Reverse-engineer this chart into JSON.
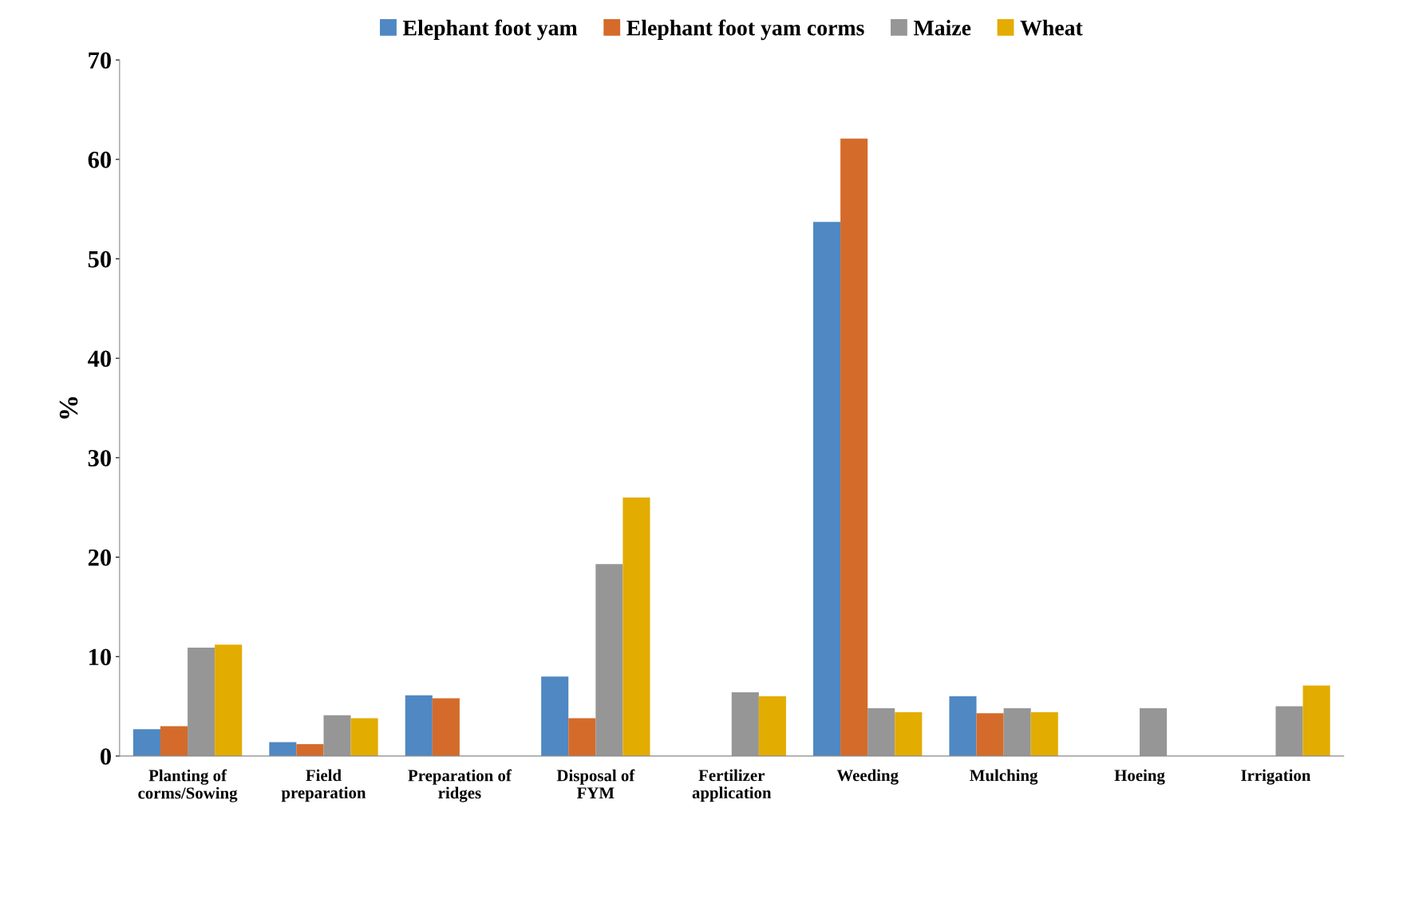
{
  "chart_data": {
    "type": "bar",
    "ylabel": "%",
    "categories": [
      "Planting of\ncorms/Sowing",
      "Field\npreparation",
      "Preparation of\nridges",
      "Disposal of\nFYM",
      "Fertilizer\napplication",
      "Weeding",
      "Mulching",
      "Hoeing",
      "Irrigation"
    ],
    "series": [
      {
        "name": "Elephant foot yam",
        "color": "#4f88c2",
        "values": [
          2.7,
          1.4,
          6.1,
          8.0,
          null,
          53.7,
          6.0,
          null,
          null
        ]
      },
      {
        "name": "Elephant foot yam corms",
        "color": "#d46b2a",
        "values": [
          3.0,
          1.2,
          5.8,
          3.8,
          null,
          62.1,
          4.3,
          null,
          null
        ]
      },
      {
        "name": "Maize",
        "color": "#969696",
        "values": [
          10.9,
          4.1,
          null,
          19.3,
          6.4,
          4.8,
          4.8,
          4.8,
          5.0
        ]
      },
      {
        "name": "Wheat",
        "color": "#e3ac00",
        "values": [
          11.2,
          3.8,
          null,
          26.0,
          6.0,
          4.4,
          4.4,
          null,
          7.1
        ]
      }
    ],
    "ylim": [
      0,
      70
    ],
    "yticks": [
      0,
      10,
      20,
      30,
      40,
      50,
      60,
      70
    ],
    "grid": false,
    "legend": "top"
  }
}
